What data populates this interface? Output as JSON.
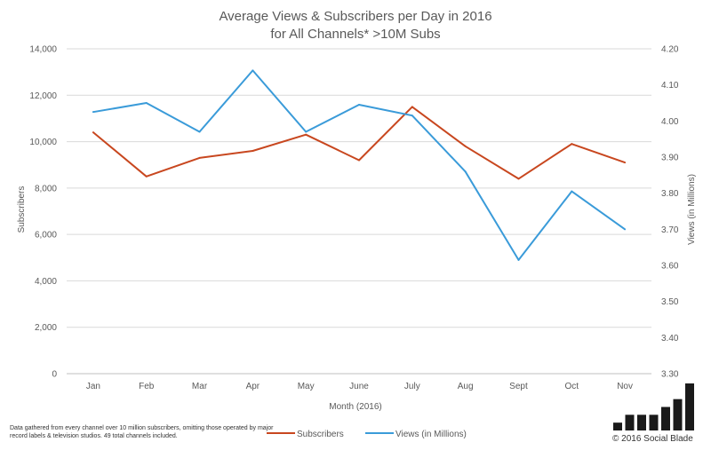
{
  "chart_data": {
    "type": "line",
    "title": [
      "Average Views & Subscribers per Day in 2016",
      "for All Channels* >10M Subs"
    ],
    "xlabel": "Month (2016)",
    "ylabel_left": "Subscribers",
    "ylabel_right": "Views (in Millions)",
    "categories": [
      "Jan",
      "Feb",
      "Mar",
      "Apr",
      "May",
      "June",
      "July",
      "Aug",
      "Sept",
      "Oct",
      "Nov"
    ],
    "ylim_left": [
      0,
      14000
    ],
    "ylim_right": [
      3.3,
      4.2
    ],
    "yticks_left": [
      "0",
      "2,000",
      "4,000",
      "6,000",
      "8,000",
      "10,000",
      "12,000",
      "14,000"
    ],
    "yticks_right": [
      "3.30",
      "3.40",
      "3.50",
      "3.60",
      "3.70",
      "3.80",
      "3.90",
      "4.00",
      "4.10",
      "4.20"
    ],
    "grid": true,
    "legend_position": "bottom",
    "series": [
      {
        "name": "Subscribers",
        "axis": "left",
        "color": "#c8471f",
        "values": [
          10400,
          8500,
          9300,
          9600,
          10300,
          9200,
          11500,
          9800,
          8400,
          9900,
          9100
        ]
      },
      {
        "name": "Views (in Millions)",
        "axis": "right",
        "color": "#3a9bd9",
        "values": [
          4.025,
          4.05,
          3.97,
          4.14,
          3.97,
          4.045,
          4.015,
          3.86,
          3.615,
          3.805,
          3.7
        ]
      }
    ]
  },
  "footnote": "Data gathered from every channel over 10 million subscribers, omitting those operated by major record labels & television studios. 49 total channels included.",
  "brand": {
    "logo_bar_levels": [
      1,
      2,
      2,
      2,
      3,
      4,
      6
    ],
    "copyright": "© 2016 Social Blade"
  }
}
